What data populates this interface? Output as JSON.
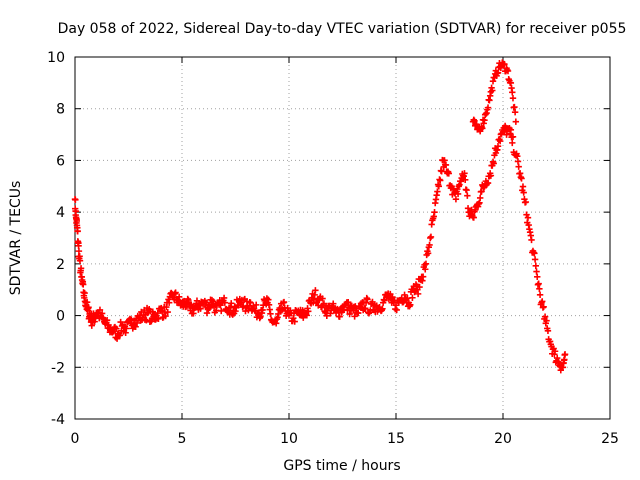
{
  "chart_data": {
    "type": "scatter",
    "title": "Day 058 of 2022, Sidereal Day-to-day VTEC variation (SDTVAR) for receiver p055",
    "xlabel": "GPS time / hours",
    "ylabel": "SDTVAR / TECUs",
    "xlim": [
      0,
      25
    ],
    "ylim": [
      -4,
      10
    ],
    "xticks": [
      "0",
      "5",
      "10",
      "15",
      "20",
      "25"
    ],
    "yticks": [
      "-4",
      "-2",
      "0",
      "2",
      "4",
      "6",
      "8",
      "10"
    ],
    "grid": true,
    "marker": "plus",
    "color": "#ff0000",
    "series": [
      {
        "name": "SDTVAR",
        "x": [
          0.0,
          0.05,
          0.1,
          0.15,
          0.2,
          0.3,
          0.4,
          0.5,
          0.6,
          0.7,
          0.8,
          0.9,
          1.0,
          1.2,
          1.4,
          1.6,
          1.8,
          2.0,
          2.2,
          2.4,
          2.6,
          2.8,
          3.0,
          3.2,
          3.4,
          3.6,
          3.8,
          4.0,
          4.2,
          4.4,
          4.6,
          4.8,
          5.0,
          5.2,
          5.4,
          5.6,
          5.8,
          6.0,
          6.2,
          6.4,
          6.6,
          6.8,
          7.0,
          7.2,
          7.4,
          7.6,
          7.8,
          8.0,
          8.2,
          8.4,
          8.6,
          8.8,
          9.0,
          9.2,
          9.4,
          9.6,
          9.8,
          10.0,
          10.2,
          10.4,
          10.6,
          10.8,
          11.0,
          11.2,
          11.4,
          11.6,
          11.8,
          12.0,
          12.2,
          12.4,
          12.6,
          12.8,
          13.0,
          13.2,
          13.4,
          13.6,
          13.8,
          14.0,
          14.2,
          14.4,
          14.6,
          14.8,
          15.0,
          15.2,
          15.4,
          15.6,
          15.8,
          16.0,
          16.2,
          16.4,
          16.6,
          16.8,
          17.0,
          17.2,
          17.4,
          17.6,
          17.8,
          18.0,
          18.2,
          18.4,
          18.6,
          18.8,
          19.0,
          19.2,
          19.4,
          19.6,
          19.8,
          20.0,
          20.2,
          20.4,
          20.6,
          20.8,
          21.0,
          21.2,
          21.4,
          21.6,
          21.8,
          22.0,
          22.2,
          22.4,
          22.6,
          22.8,
          22.9
        ],
        "y": [
          4.5,
          3.8,
          3.4,
          2.8,
          2.2,
          1.5,
          0.9,
          0.5,
          0.2,
          0.0,
          -0.2,
          -0.1,
          0.1,
          0.0,
          -0.3,
          -0.5,
          -0.6,
          -0.7,
          -0.4,
          -0.5,
          -0.3,
          -0.2,
          -0.1,
          0.0,
          0.1,
          -0.1,
          0.0,
          0.2,
          0.1,
          0.5,
          0.8,
          0.6,
          0.4,
          0.5,
          0.2,
          0.3,
          0.4,
          0.5,
          0.3,
          0.6,
          0.2,
          0.4,
          0.5,
          0.3,
          0.2,
          0.4,
          0.6,
          0.3,
          0.5,
          0.2,
          0.1,
          0.4,
          0.5,
          -0.2,
          -0.3,
          0.2,
          0.3,
          0.0,
          -0.1,
          0.1,
          0.0,
          0.1,
          0.5,
          0.8,
          0.6,
          0.4,
          0.2,
          0.3,
          0.1,
          0.2,
          0.4,
          0.3,
          0.2,
          0.1,
          0.3,
          0.5,
          0.2,
          0.4,
          0.3,
          0.5,
          0.8,
          0.5,
          0.4,
          0.6,
          0.8,
          0.5,
          1.0,
          1.0,
          1.5,
          2.0,
          3.0,
          4.0,
          5.0,
          6.0,
          5.5,
          5.0,
          4.5,
          5.2,
          5.5,
          4.0,
          3.8,
          4.3,
          4.8,
          5.2,
          5.5,
          6.2,
          6.8,
          7.1,
          7.2,
          6.9,
          6.2,
          5.5,
          4.5,
          3.5,
          2.5,
          1.5,
          0.5,
          -0.3,
          -1.0,
          -1.5,
          -1.8,
          -2.0,
          -1.5
        ],
        "upper_branch": {
          "x": [
            18.6,
            18.8,
            19.0,
            19.2,
            19.4,
            19.6,
            19.8,
            20.0,
            20.2,
            20.4,
            20.6
          ],
          "y": [
            7.5,
            7.2,
            7.3,
            7.8,
            8.5,
            9.2,
            9.6,
            9.7,
            9.5,
            8.8,
            7.5
          ]
        }
      }
    ]
  }
}
